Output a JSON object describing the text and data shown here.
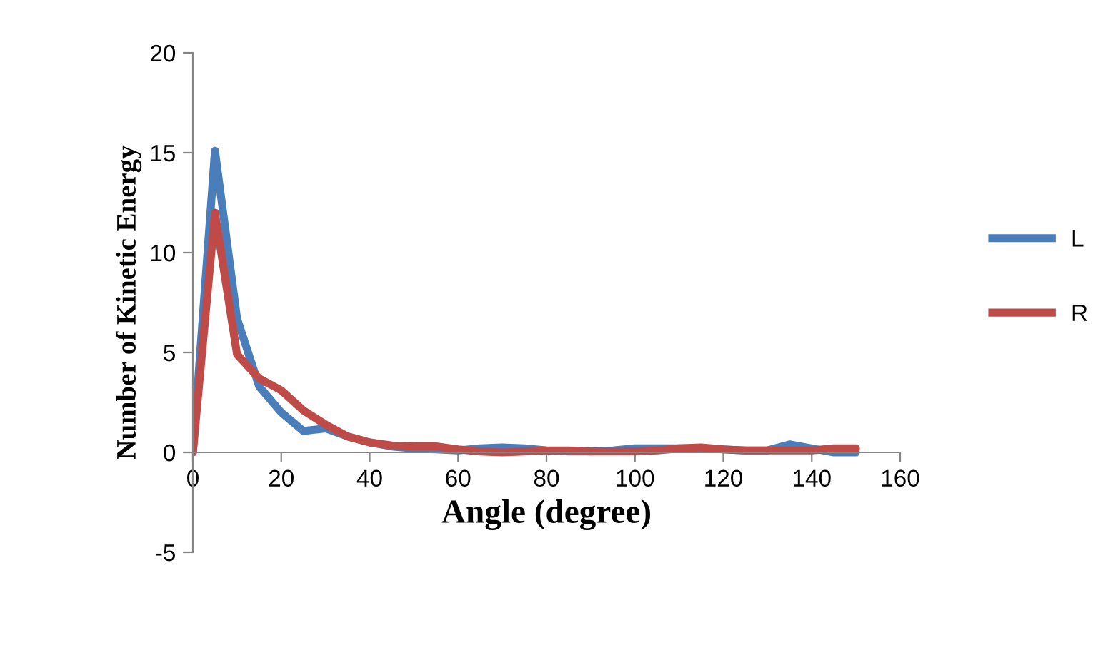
{
  "chart_data": {
    "type": "line",
    "xlabel": "Angle (degree)",
    "ylabel": "Number of Kinetic Energy",
    "x": [
      0,
      5,
      10,
      15,
      20,
      25,
      30,
      35,
      40,
      45,
      50,
      55,
      60,
      65,
      70,
      75,
      80,
      85,
      90,
      95,
      100,
      105,
      110,
      115,
      120,
      125,
      130,
      135,
      140,
      145,
      150
    ],
    "series": [
      {
        "name": "L",
        "color": "#4a7ebb",
        "values": [
          0,
          15.1,
          6.7,
          3.3,
          2.0,
          1.07,
          1.2,
          0.8,
          0.5,
          0.3,
          0.2,
          0.15,
          0.1,
          0.2,
          0.25,
          0.2,
          0.1,
          0.05,
          0.05,
          0.1,
          0.2,
          0.2,
          0.2,
          0.2,
          0.15,
          0.1,
          0.1,
          0.4,
          0.2,
          0.0,
          0.0
        ]
      },
      {
        "name": "R",
        "color": "#be4b48",
        "values": [
          0,
          12.0,
          4.9,
          3.7,
          3.1,
          2.1,
          1.4,
          0.8,
          0.5,
          0.35,
          0.3,
          0.3,
          0.15,
          0.05,
          0.0,
          0.05,
          0.1,
          0.1,
          0.05,
          0.05,
          0.05,
          0.1,
          0.2,
          0.25,
          0.15,
          0.1,
          0.1,
          0.1,
          0.1,
          0.2,
          0.2
        ]
      }
    ],
    "xlim": [
      0,
      160
    ],
    "xticks": [
      0,
      20,
      40,
      60,
      80,
      100,
      120,
      140,
      160
    ],
    "ylim": [
      -5,
      20
    ],
    "yticks": [
      -5,
      0,
      5,
      10,
      15,
      20
    ],
    "grid": false,
    "legend": "right",
    "marker": "none",
    "line_style": "solid"
  }
}
